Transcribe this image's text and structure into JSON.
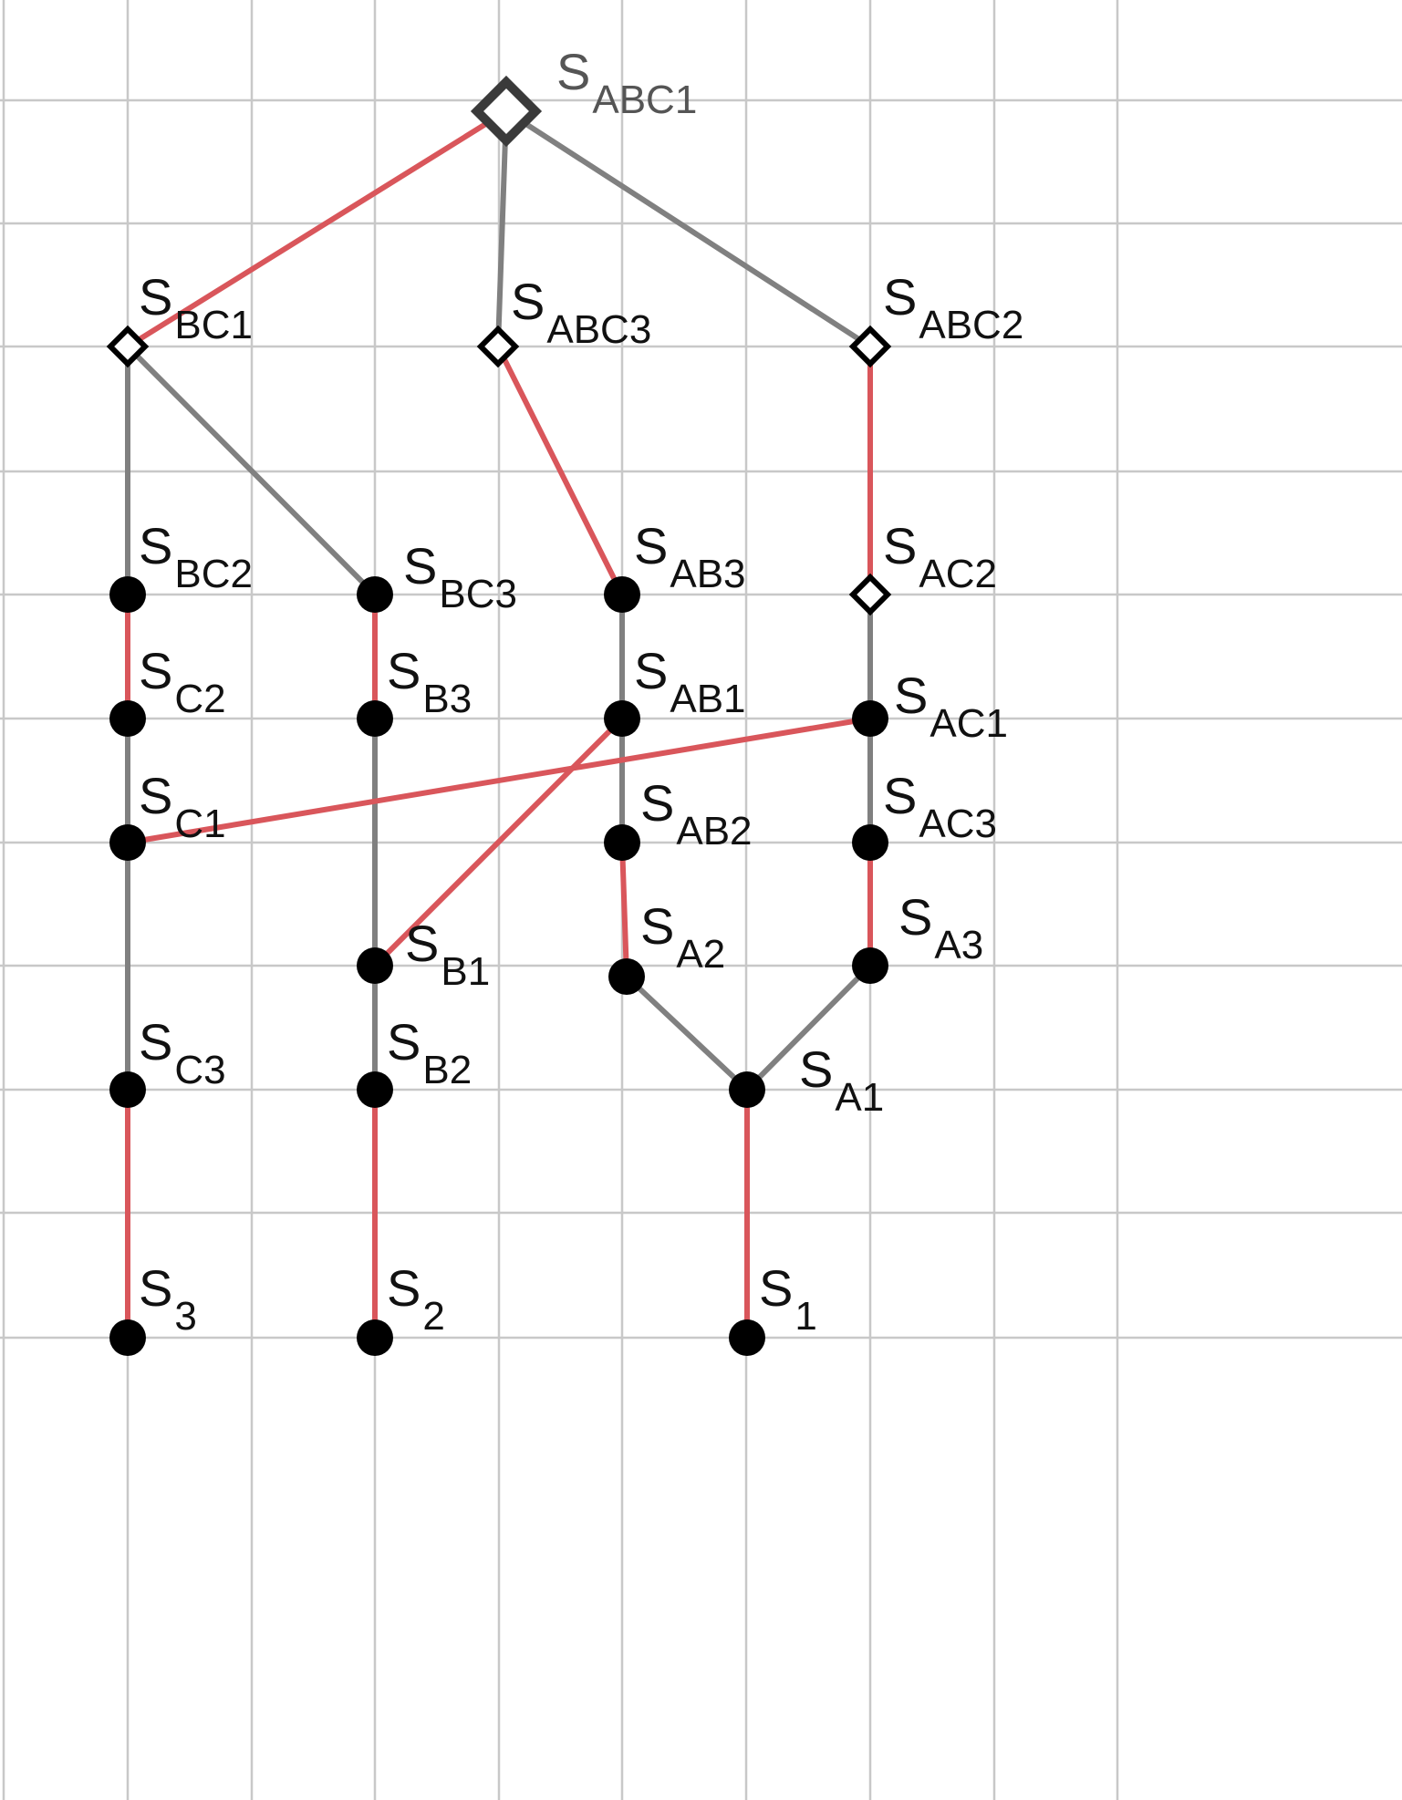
{
  "colors": {
    "background": "#ffffff",
    "grid": "#c8c8c8",
    "edge_red": "#d9565b",
    "edge_gray": "#808080",
    "node_fill": "#000000",
    "top_node_stroke": "#3a3a3a"
  },
  "nodes": [
    {
      "id": "SABC1",
      "base": "S",
      "sub": "ABC1",
      "shape": "diamond-large",
      "label_color": "#555555"
    },
    {
      "id": "SBC1",
      "base": "S",
      "sub": "BC1",
      "shape": "diamond"
    },
    {
      "id": "SABC3",
      "base": "S",
      "sub": "ABC3",
      "shape": "diamond"
    },
    {
      "id": "SABC2",
      "base": "S",
      "sub": "ABC2",
      "shape": "diamond"
    },
    {
      "id": "SBC2",
      "base": "S",
      "sub": "BC2",
      "shape": "dot"
    },
    {
      "id": "SBC3",
      "base": "S",
      "sub": "BC3",
      "shape": "dot"
    },
    {
      "id": "SAB3",
      "base": "S",
      "sub": "AB3",
      "shape": "dot"
    },
    {
      "id": "SAC2",
      "base": "S",
      "sub": "AC2",
      "shape": "diamond"
    },
    {
      "id": "SC2",
      "base": "S",
      "sub": "C2",
      "shape": "dot"
    },
    {
      "id": "SB3",
      "base": "S",
      "sub": "B3",
      "shape": "dot"
    },
    {
      "id": "SAB1",
      "base": "S",
      "sub": "AB1",
      "shape": "dot"
    },
    {
      "id": "SAC1",
      "base": "S",
      "sub": "AC1",
      "shape": "dot"
    },
    {
      "id": "SC1",
      "base": "S",
      "sub": "C1",
      "shape": "dot"
    },
    {
      "id": "SAB2",
      "base": "S",
      "sub": "AB2",
      "shape": "dot"
    },
    {
      "id": "SAC3",
      "base": "S",
      "sub": "AC3",
      "shape": "dot"
    },
    {
      "id": "SB1",
      "base": "S",
      "sub": "B1",
      "shape": "dot"
    },
    {
      "id": "SA2",
      "base": "S",
      "sub": "A2",
      "shape": "dot"
    },
    {
      "id": "SA3",
      "base": "S",
      "sub": "A3",
      "shape": "dot"
    },
    {
      "id": "SC3",
      "base": "S",
      "sub": "C3",
      "shape": "dot"
    },
    {
      "id": "SB2",
      "base": "S",
      "sub": "B2",
      "shape": "dot"
    },
    {
      "id": "SA1",
      "base": "S",
      "sub": "A1",
      "shape": "dot"
    },
    {
      "id": "S3",
      "base": "S",
      "sub": "3",
      "shape": "dot"
    },
    {
      "id": "S2",
      "base": "S",
      "sub": "2",
      "shape": "dot"
    },
    {
      "id": "S1",
      "base": "S",
      "sub": "1",
      "shape": "dot"
    }
  ],
  "edges": [
    {
      "from": "SABC1",
      "to": "SBC1",
      "color": "red"
    },
    {
      "from": "SABC1",
      "to": "SABC3",
      "color": "gray"
    },
    {
      "from": "SABC1",
      "to": "SABC2",
      "color": "gray"
    },
    {
      "from": "SBC1",
      "to": "SBC2",
      "color": "gray"
    },
    {
      "from": "SBC1",
      "to": "SBC3",
      "color": "gray"
    },
    {
      "from": "SABC3",
      "to": "SAB3",
      "color": "red"
    },
    {
      "from": "SABC2",
      "to": "SAC2",
      "color": "red"
    },
    {
      "from": "SBC2",
      "to": "SC2",
      "color": "red"
    },
    {
      "from": "SBC3",
      "to": "SB3",
      "color": "red"
    },
    {
      "from": "SAB3",
      "to": "SAB1",
      "color": "gray"
    },
    {
      "from": "SAC2",
      "to": "SAC1",
      "color": "gray"
    },
    {
      "from": "SC2",
      "to": "SC1",
      "color": "gray"
    },
    {
      "from": "SB3",
      "to": "SB1",
      "color": "gray"
    },
    {
      "from": "SAB1",
      "to": "SAB2",
      "color": "gray"
    },
    {
      "from": "SAC1",
      "to": "SAC3",
      "color": "gray"
    },
    {
      "from": "SAC1",
      "to": "SC1",
      "color": "red"
    },
    {
      "from": "SAB1",
      "to": "SB1",
      "color": "red"
    },
    {
      "from": "SC1",
      "to": "SC3",
      "color": "gray"
    },
    {
      "from": "SAB2",
      "to": "SA2",
      "color": "red"
    },
    {
      "from": "SAC3",
      "to": "SA3",
      "color": "red"
    },
    {
      "from": "SB1",
      "to": "SB2",
      "color": "gray"
    },
    {
      "from": "SA2",
      "to": "SA1",
      "color": "gray"
    },
    {
      "from": "SA3",
      "to": "SA1",
      "color": "gray"
    },
    {
      "from": "SC3",
      "to": "S3",
      "color": "red"
    },
    {
      "from": "SB2",
      "to": "S2",
      "color": "red"
    },
    {
      "from": "SA1",
      "to": "S1",
      "color": "red"
    }
  ]
}
